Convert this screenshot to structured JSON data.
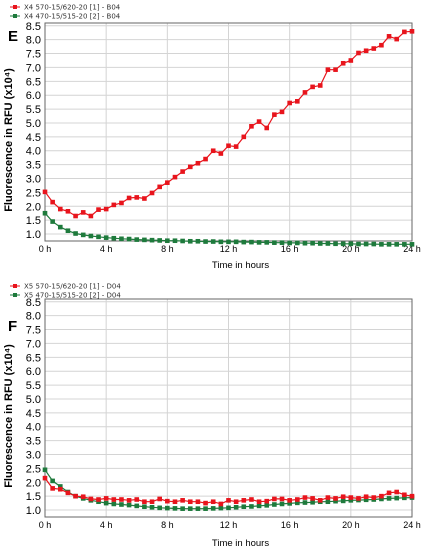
{
  "chart_data": [
    {
      "type": "line",
      "panel_label": "E",
      "ylabel": "Fluorescence in RFU (x10⁴)",
      "xlabel": "Time in hours",
      "x_ticks": [
        "0 h",
        "4 h",
        "8 h",
        "12 h",
        "16 h",
        "20 h",
        "24 h"
      ],
      "y_ticks": [
        "1.0",
        "1.5",
        "2.0",
        "2.5",
        "3.0",
        "3.5",
        "4.0",
        "4.5",
        "5.0",
        "5.5",
        "6.0",
        "6.5",
        "7.0",
        "7.5",
        "8.0",
        "8.5"
      ],
      "xlim": [
        0,
        24
      ],
      "ylim": [
        0.75,
        8.6
      ],
      "grid": true,
      "legend_position": "top-left",
      "series": [
        {
          "name": "X4 570-15/620-20 [1] - B04",
          "color": "#e8141c",
          "marker": "square",
          "x": [
            0,
            0.5,
            1,
            1.5,
            2,
            2.5,
            3,
            3.5,
            4,
            4.5,
            5,
            5.5,
            6,
            6.5,
            7,
            7.5,
            8,
            8.5,
            9,
            9.5,
            10,
            10.5,
            11,
            11.5,
            12,
            12.5,
            13,
            13.5,
            14,
            14.5,
            15,
            15.5,
            16,
            16.5,
            17,
            17.5,
            18,
            18.5,
            19,
            19.5,
            20,
            20.5,
            21,
            21.5,
            22,
            22.5,
            23,
            23.5,
            24
          ],
          "y": [
            2.52,
            2.15,
            1.9,
            1.82,
            1.65,
            1.78,
            1.65,
            1.88,
            1.9,
            2.05,
            2.12,
            2.3,
            2.32,
            2.28,
            2.48,
            2.7,
            2.85,
            3.05,
            3.25,
            3.42,
            3.55,
            3.7,
            4.0,
            3.9,
            4.18,
            4.15,
            4.5,
            4.88,
            5.05,
            4.82,
            5.3,
            5.4,
            5.72,
            5.78,
            6.1,
            6.3,
            6.35,
            6.92,
            6.92,
            7.15,
            7.25,
            7.52,
            7.6,
            7.68,
            7.8,
            8.12,
            8.02,
            8.28,
            8.3
          ]
        },
        {
          "name": "X4 470-15/515-20 [2] - B04",
          "color": "#1e7a3c",
          "marker": "square",
          "x": [
            0,
            0.5,
            1,
            1.5,
            2,
            2.5,
            3,
            3.5,
            4,
            4.5,
            5,
            5.5,
            6,
            6.5,
            7,
            7.5,
            8,
            8.5,
            9,
            9.5,
            10,
            10.5,
            11,
            11.5,
            12,
            12.5,
            13,
            13.5,
            14,
            14.5,
            15,
            15.5,
            16,
            16.5,
            17,
            17.5,
            18,
            18.5,
            19,
            19.5,
            20,
            20.5,
            21,
            21.5,
            22,
            22.5,
            23,
            23.5,
            24
          ],
          "y": [
            1.75,
            1.45,
            1.25,
            1.12,
            1.02,
            0.97,
            0.93,
            0.9,
            0.87,
            0.85,
            0.83,
            0.82,
            0.8,
            0.79,
            0.78,
            0.77,
            0.76,
            0.76,
            0.75,
            0.74,
            0.74,
            0.73,
            0.73,
            0.72,
            0.72,
            0.72,
            0.71,
            0.71,
            0.7,
            0.7,
            0.69,
            0.69,
            0.68,
            0.68,
            0.67,
            0.67,
            0.66,
            0.66,
            0.65,
            0.65,
            0.65,
            0.64,
            0.64,
            0.64,
            0.63,
            0.63,
            0.63,
            0.63,
            0.63
          ]
        }
      ]
    },
    {
      "type": "line",
      "panel_label": "F",
      "ylabel": "Fluorescence in RFU (x10⁴)",
      "xlabel": "Time in hours",
      "x_ticks": [
        "0 h",
        "4 h",
        "8 h",
        "12 h",
        "16 h",
        "20 h",
        "24 h"
      ],
      "y_ticks": [
        "1.0",
        "1.5",
        "2.0",
        "2.5",
        "3.0",
        "3.5",
        "4.0",
        "4.5",
        "5.0",
        "5.5",
        "6.0",
        "6.5",
        "7.0",
        "7.5",
        "8.0",
        "8.5"
      ],
      "xlim": [
        0,
        24
      ],
      "ylim": [
        0.75,
        8.6
      ],
      "grid": true,
      "legend_position": "top-left",
      "series": [
        {
          "name": "X5 570-15/620-20 [1] - D04",
          "color": "#e8141c",
          "marker": "square",
          "x": [
            0,
            0.5,
            1,
            1.5,
            2,
            2.5,
            3,
            3.5,
            4,
            4.5,
            5,
            5.5,
            6,
            6.5,
            7,
            7.5,
            8,
            8.5,
            9,
            9.5,
            10,
            10.5,
            11,
            11.5,
            12,
            12.5,
            13,
            13.5,
            14,
            14.5,
            15,
            15.5,
            16,
            16.5,
            17,
            17.5,
            18,
            18.5,
            19,
            19.5,
            20,
            20.5,
            21,
            21.5,
            22,
            22.5,
            23,
            23.5,
            24
          ],
          "y": [
            2.15,
            1.78,
            1.75,
            1.62,
            1.5,
            1.48,
            1.4,
            1.38,
            1.42,
            1.38,
            1.38,
            1.35,
            1.38,
            1.3,
            1.3,
            1.4,
            1.32,
            1.3,
            1.35,
            1.3,
            1.3,
            1.25,
            1.3,
            1.22,
            1.35,
            1.3,
            1.35,
            1.38,
            1.3,
            1.32,
            1.4,
            1.4,
            1.35,
            1.38,
            1.45,
            1.42,
            1.35,
            1.45,
            1.42,
            1.48,
            1.45,
            1.42,
            1.48,
            1.45,
            1.5,
            1.62,
            1.65,
            1.55,
            1.5
          ]
        },
        {
          "name": "X5 470-15/515-20 [2] - D04",
          "color": "#1e7a3c",
          "marker": "square",
          "x": [
            0,
            0.5,
            1,
            1.5,
            2,
            2.5,
            3,
            3.5,
            4,
            4.5,
            5,
            5.5,
            6,
            6.5,
            7,
            7.5,
            8,
            8.5,
            9,
            9.5,
            10,
            10.5,
            11,
            11.5,
            12,
            12.5,
            13,
            13.5,
            14,
            14.5,
            15,
            15.5,
            16,
            16.5,
            17,
            17.5,
            18,
            18.5,
            19,
            19.5,
            20,
            20.5,
            21,
            21.5,
            22,
            22.5,
            23,
            23.5,
            24
          ],
          "y": [
            2.45,
            2.05,
            1.85,
            1.65,
            1.5,
            1.42,
            1.35,
            1.3,
            1.25,
            1.22,
            1.2,
            1.18,
            1.15,
            1.12,
            1.1,
            1.08,
            1.07,
            1.06,
            1.05,
            1.05,
            1.05,
            1.05,
            1.06,
            1.07,
            1.08,
            1.1,
            1.12,
            1.13,
            1.15,
            1.17,
            1.2,
            1.22,
            1.24,
            1.26,
            1.27,
            1.28,
            1.3,
            1.3,
            1.32,
            1.33,
            1.35,
            1.36,
            1.37,
            1.38,
            1.4,
            1.42,
            1.43,
            1.44,
            1.45
          ]
        }
      ]
    }
  ]
}
